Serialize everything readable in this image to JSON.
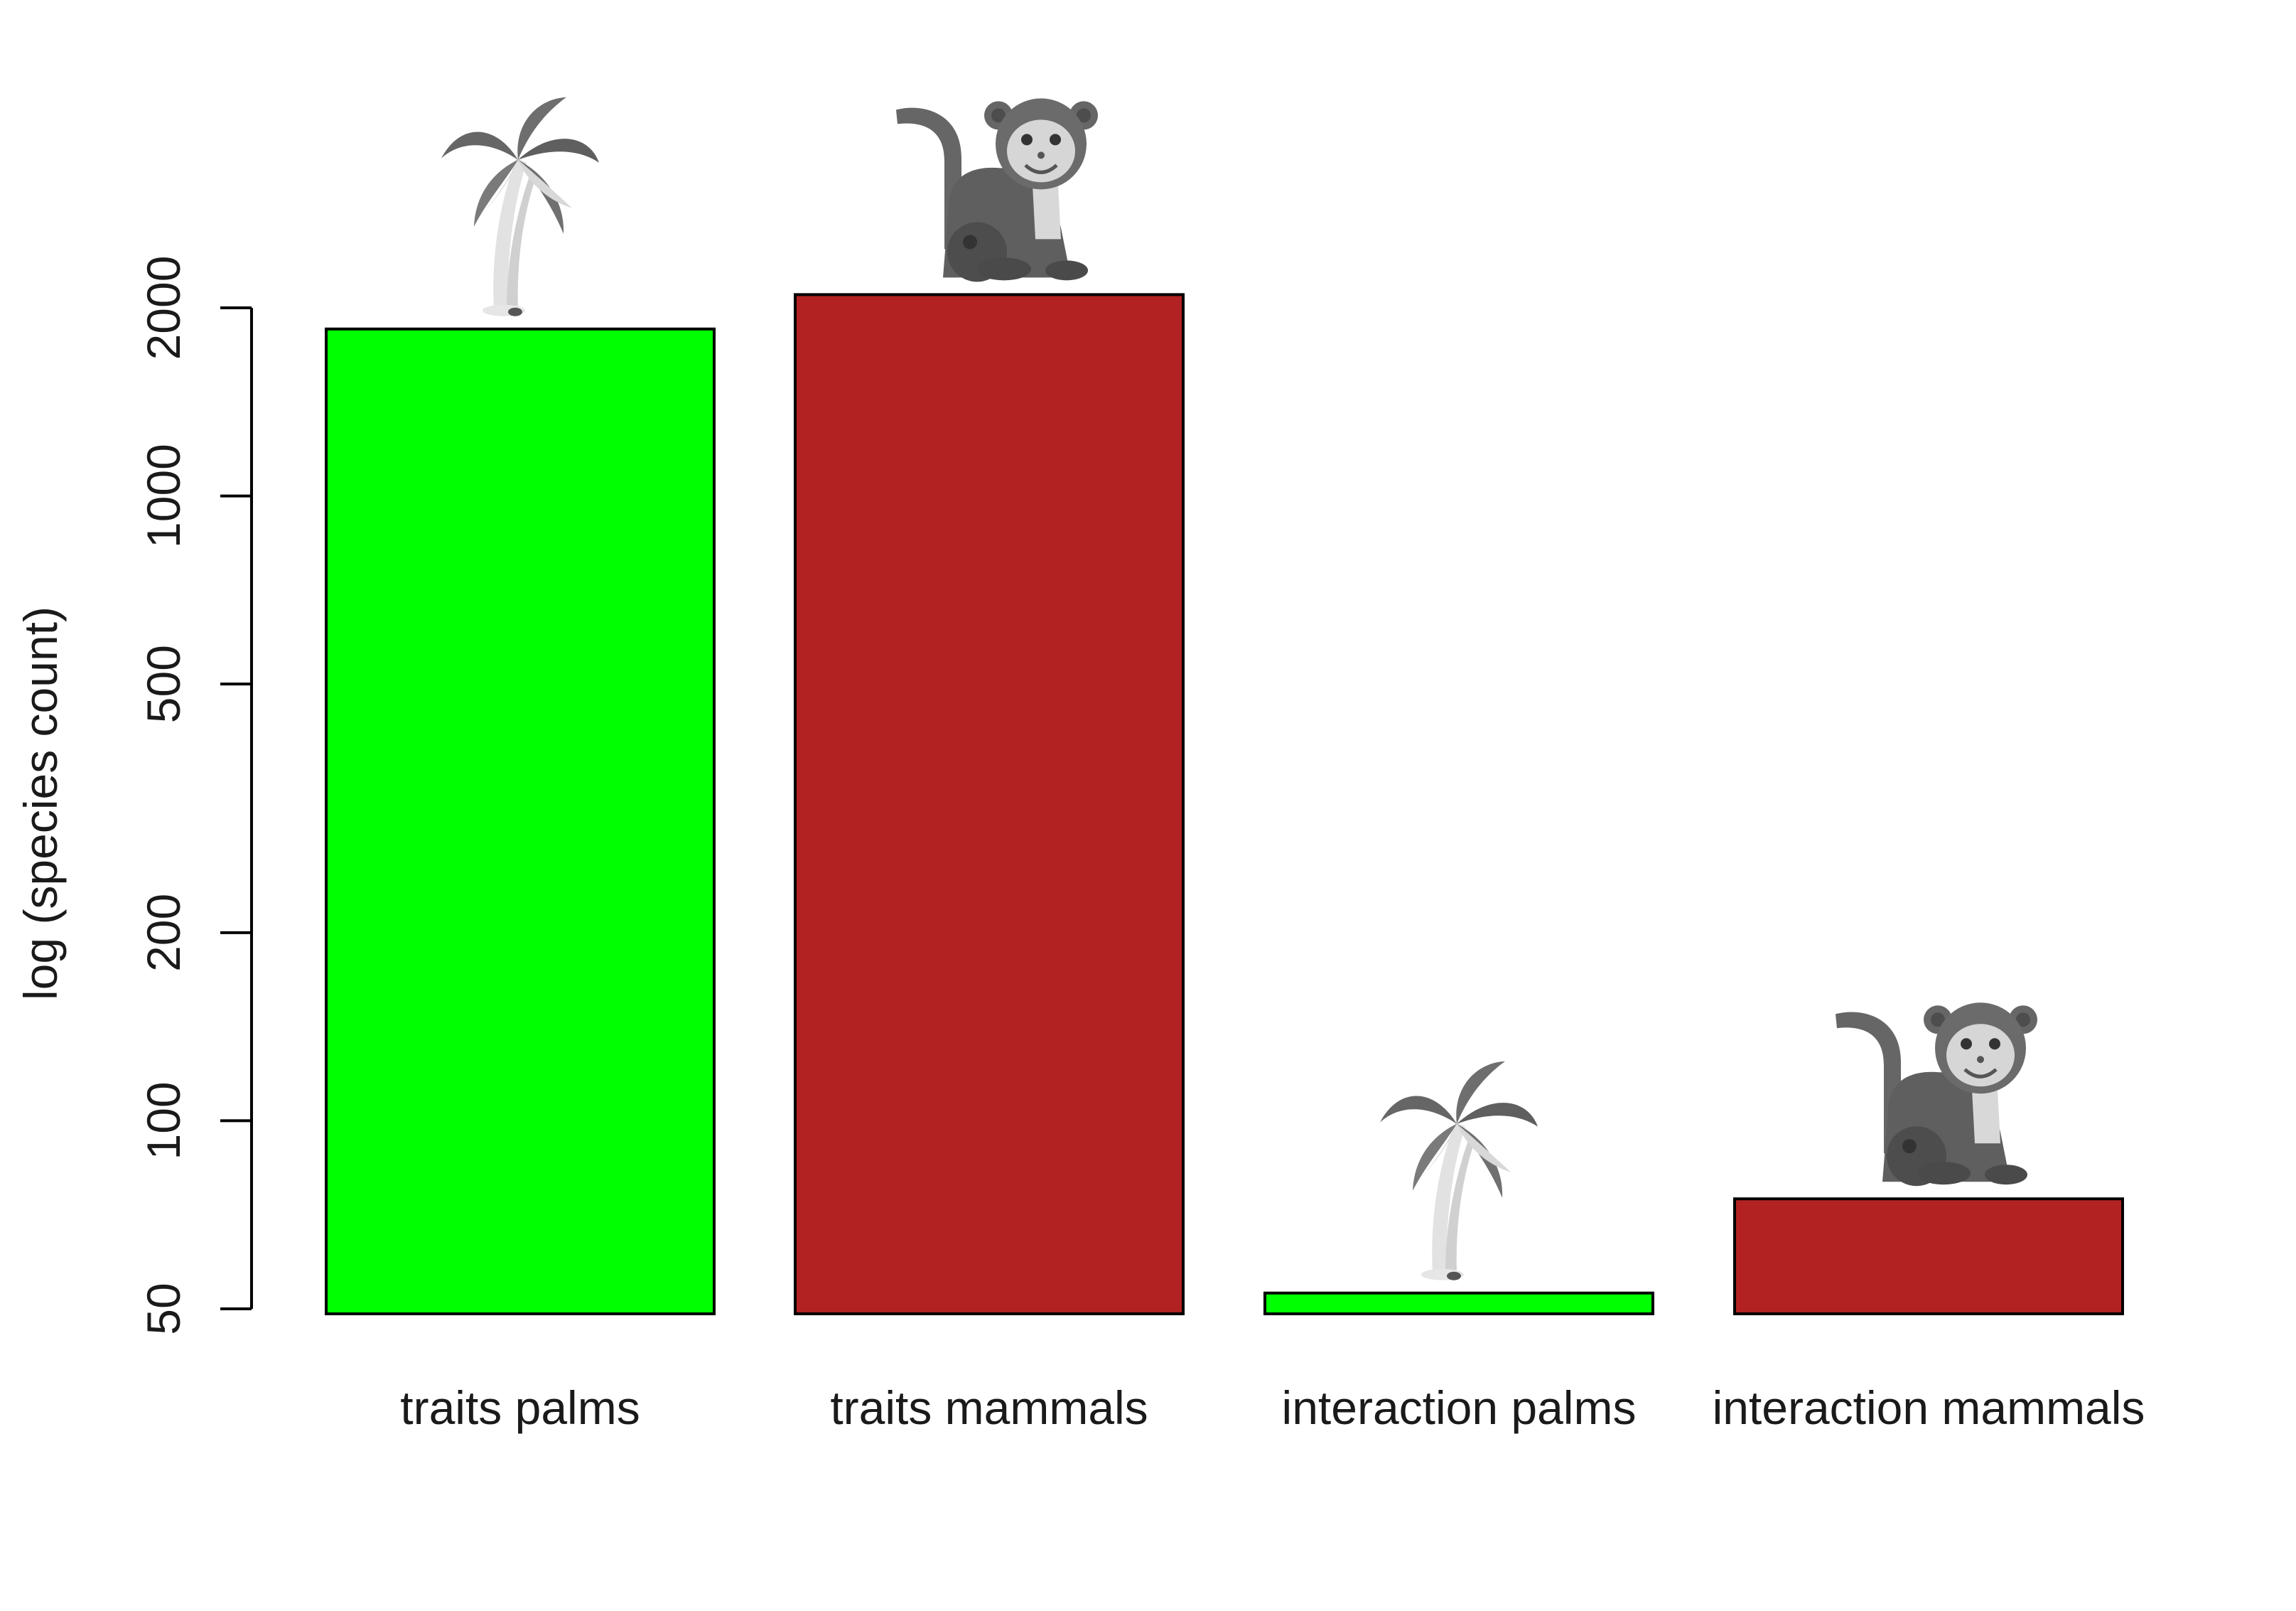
{
  "chart_data": {
    "type": "bar",
    "scale": "log",
    "ylabel": "log (species count)",
    "categories": [
      "traits palms",
      "traits mammals",
      "interaction palms",
      "interaction mammals"
    ],
    "values": [
      1850,
      2100,
      53,
      75
    ],
    "bar_colors": [
      "#00ff00",
      "#b22222",
      "#00ff00",
      "#b22222"
    ],
    "icons": [
      "palm-tree-icon",
      "monkey-icon",
      "palm-tree-icon",
      "monkey-icon"
    ],
    "yticks": [
      50,
      100,
      200,
      500,
      1000,
      2000
    ],
    "ylim": [
      50,
      2000
    ],
    "grid": false,
    "legend": "none"
  }
}
